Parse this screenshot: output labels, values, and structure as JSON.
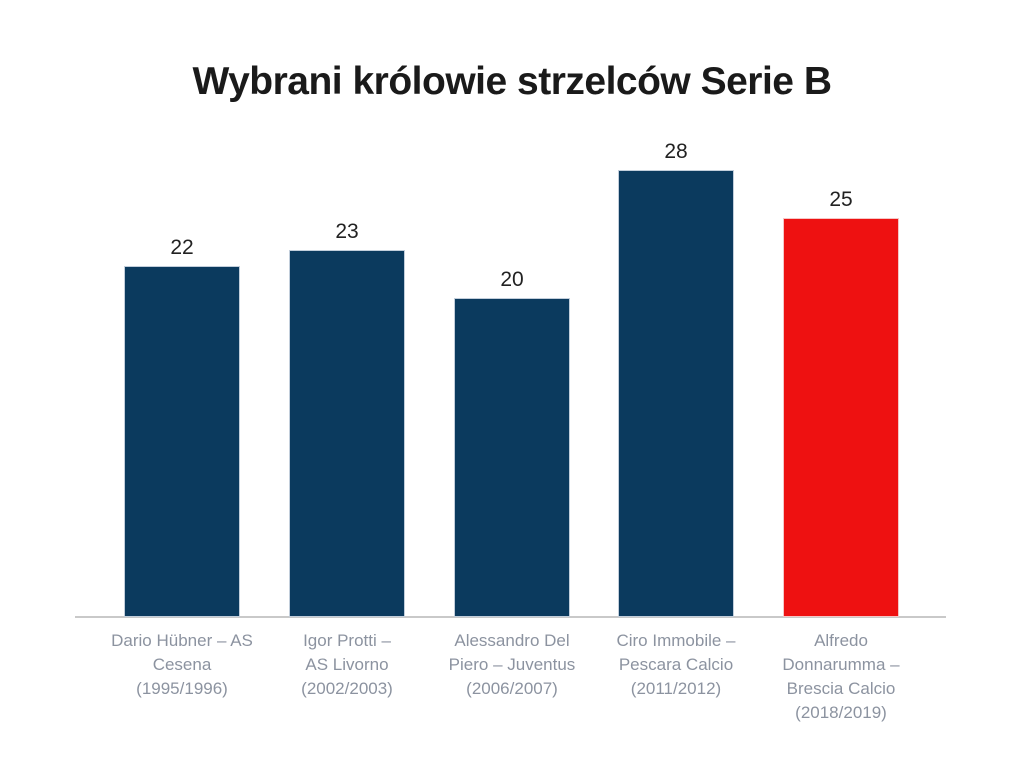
{
  "chart_data": {
    "type": "bar",
    "title": "Wybrani królowie strzelców Serie B",
    "categories": [
      "Dario Hübner – AS Cesena (1995/1996)",
      "Igor Protti – AS Livorno (2002/2003)",
      "Alessandro Del Piero – Juventus (2006/2007)",
      "Ciro Immobile – Pescara Calcio (2011/2012)",
      "Alfredo Donnarumma – Brescia Calcio (2018/2019)"
    ],
    "category_lines": [
      [
        "Dario Hübner – AS",
        "Cesena",
        "(1995/1996)"
      ],
      [
        "Igor Protti –",
        "AS Livorno",
        "(2002/2003)"
      ],
      [
        "Alessandro Del",
        "Piero – Juventus",
        "(2006/2007)"
      ],
      [
        "Ciro Immobile –",
        "Pescara Calcio",
        "(2011/2012)"
      ],
      [
        "Alfredo",
        "Donnarumma –",
        "Brescia Calcio",
        "(2018/2019)"
      ]
    ],
    "values": [
      22,
      23,
      20,
      28,
      25
    ],
    "value_labels": [
      "22",
      "23",
      "20",
      "28",
      "25"
    ],
    "bar_colors": [
      "#0b3a5e",
      "#0b3a5e",
      "#0b3a5e",
      "#0b3a5e",
      "#ee1111"
    ],
    "bar_border_colors": [
      "#c2cedb",
      "#c2cedb",
      "#c2cedb",
      "#c2cedb",
      "#f5c6c6"
    ],
    "highlight_index": 4,
    "xlabel": "",
    "ylabel": "",
    "ylim": [
      0,
      28
    ],
    "grid": false,
    "legend": null,
    "colors": {
      "bar_default": "#0b3a5e",
      "bar_highlight": "#ee1111",
      "axis_line": "#c9c9c9",
      "category_label": "#8c93a0",
      "value_label": "#222222",
      "title": "#1a1a1a",
      "background": "#ffffff"
    }
  }
}
